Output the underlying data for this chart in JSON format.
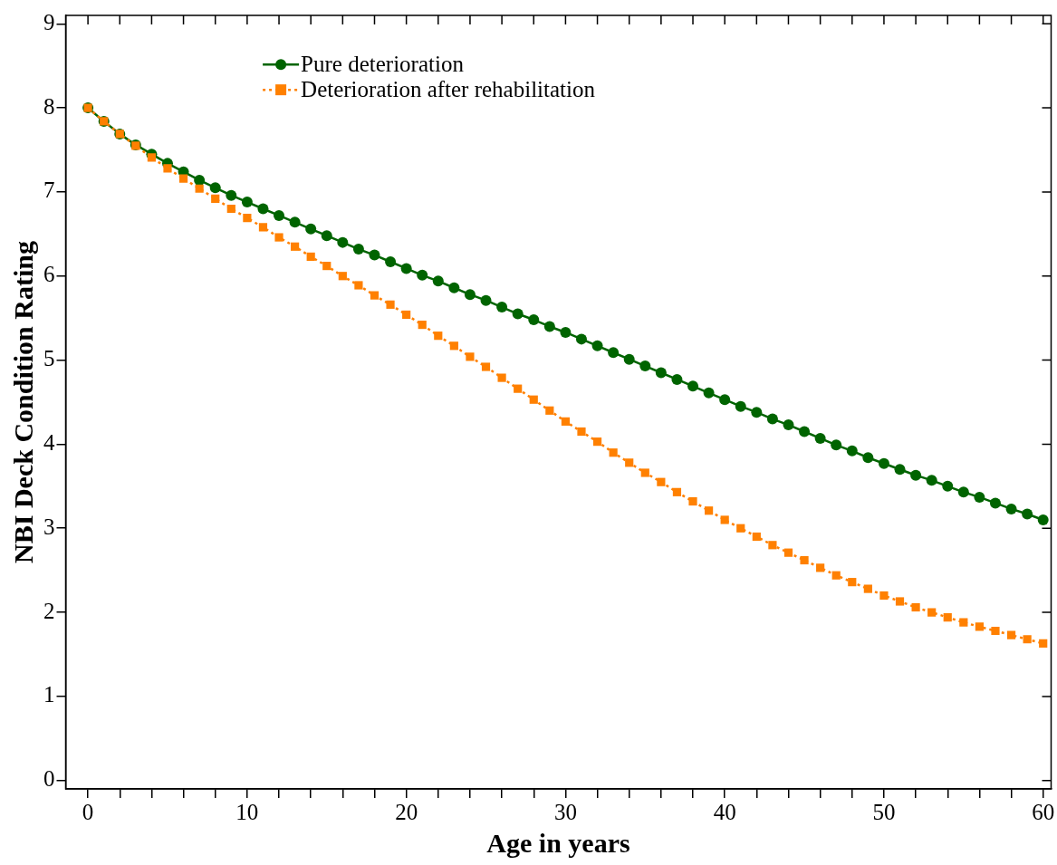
{
  "chart_data": {
    "type": "line",
    "xlabel": "Age in years",
    "ylabel": "NBI Deck Condition Rating",
    "x": [
      0,
      1,
      2,
      3,
      4,
      5,
      6,
      7,
      8,
      9,
      10,
      11,
      12,
      13,
      14,
      15,
      16,
      17,
      18,
      19,
      20,
      21,
      22,
      23,
      24,
      25,
      26,
      27,
      28,
      29,
      30,
      31,
      32,
      33,
      34,
      35,
      36,
      37,
      38,
      39,
      40,
      41,
      42,
      43,
      44,
      45,
      46,
      47,
      48,
      49,
      50,
      51,
      52,
      53,
      54,
      55,
      56,
      57,
      58,
      59,
      60
    ],
    "series": [
      {
        "name": "Pure deterioration",
        "color": "#006400",
        "marker": "circle",
        "line_style": "solid",
        "values": [
          8.0,
          7.84,
          7.69,
          7.56,
          7.45,
          7.34,
          7.24,
          7.14,
          7.05,
          6.96,
          6.88,
          6.8,
          6.72,
          6.64,
          6.56,
          6.48,
          6.4,
          6.32,
          6.25,
          6.17,
          6.09,
          6.01,
          5.94,
          5.86,
          5.78,
          5.71,
          5.63,
          5.55,
          5.48,
          5.4,
          5.33,
          5.25,
          5.17,
          5.09,
          5.01,
          4.93,
          4.85,
          4.77,
          4.69,
          4.61,
          4.53,
          4.45,
          4.38,
          4.3,
          4.23,
          4.15,
          4.07,
          3.99,
          3.92,
          3.84,
          3.77,
          3.7,
          3.63,
          3.57,
          3.5,
          3.43,
          3.37,
          3.3,
          3.23,
          3.17,
          3.1
        ]
      },
      {
        "name": "Deterioration after rehabilitation",
        "color": "#ff8000",
        "marker": "square",
        "line_style": "dotted",
        "values": [
          8.0,
          7.84,
          7.69,
          7.55,
          7.41,
          7.28,
          7.16,
          7.04,
          6.92,
          6.8,
          6.69,
          6.58,
          6.46,
          6.35,
          6.23,
          6.12,
          6.0,
          5.89,
          5.77,
          5.66,
          5.54,
          5.42,
          5.29,
          5.17,
          5.04,
          4.92,
          4.79,
          4.66,
          4.53,
          4.4,
          4.27,
          4.15,
          4.03,
          3.9,
          3.78,
          3.66,
          3.55,
          3.43,
          3.32,
          3.21,
          3.1,
          3.0,
          2.9,
          2.8,
          2.71,
          2.62,
          2.53,
          2.44,
          2.36,
          2.28,
          2.2,
          2.13,
          2.06,
          2.0,
          1.94,
          1.88,
          1.83,
          1.78,
          1.73,
          1.68,
          1.63
        ]
      }
    ],
    "xlim": [
      -1.4,
      60.5
    ],
    "ylim": [
      -0.1,
      9.1
    ],
    "xticks": [
      0,
      {
        "value": 2,
        "label": null
      },
      {
        "value": 4,
        "label": null
      },
      {
        "value": 6,
        "label": null
      },
      {
        "value": 8,
        "label": null
      },
      10,
      {
        "value": 12,
        "label": null
      },
      {
        "value": 14,
        "label": null
      },
      {
        "value": 16,
        "label": null
      },
      {
        "value": 18,
        "label": null
      },
      20,
      {
        "value": 22,
        "label": null
      },
      {
        "value": 24,
        "label": null
      },
      {
        "value": 26,
        "label": null
      },
      {
        "value": 28,
        "label": null
      },
      30,
      {
        "value": 32,
        "label": null
      },
      {
        "value": 34,
        "label": null
      },
      {
        "value": 36,
        "label": null
      },
      {
        "value": 38,
        "label": null
      },
      40,
      {
        "value": 42,
        "label": null
      },
      {
        "value": 44,
        "label": null
      },
      {
        "value": 46,
        "label": null
      },
      {
        "value": 48,
        "label": null
      },
      50,
      {
        "value": 52,
        "label": null
      },
      {
        "value": 54,
        "label": null
      },
      {
        "value": 56,
        "label": null
      },
      {
        "value": 58,
        "label": null
      },
      60
    ],
    "yticks": [
      0,
      1,
      2,
      3,
      4,
      5,
      6,
      7,
      8,
      9
    ],
    "grid": false,
    "legend": "top left"
  }
}
